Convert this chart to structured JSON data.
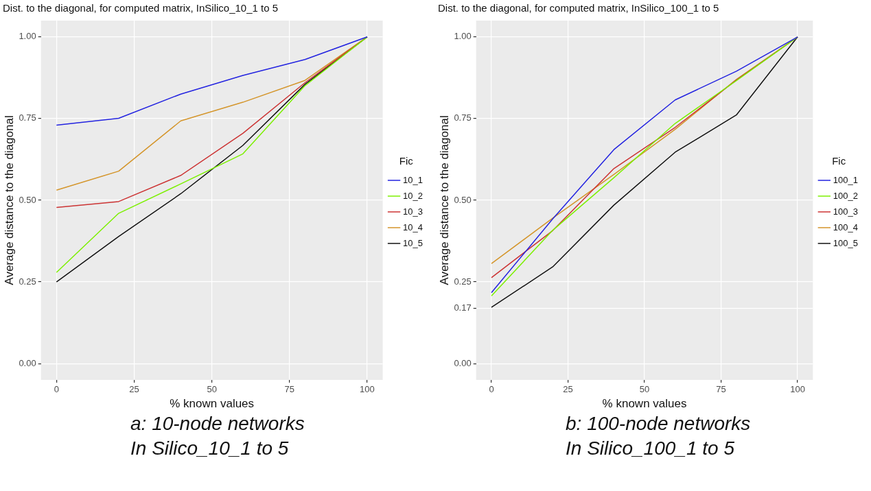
{
  "chart_data": [
    {
      "type": "line",
      "title": "Dist. to the diagonal, for computed matrix, InSilico_10_1 to 5",
      "xlabel": "% known values",
      "ylabel": "Average distance to the diagonal",
      "legend_title": "Fic",
      "legend": "right",
      "grid": true,
      "marker": "none",
      "x": [
        0,
        20,
        40,
        60,
        80,
        100
      ],
      "xlim": [
        -5,
        105
      ],
      "xticks": [
        0,
        25,
        50,
        75,
        100
      ],
      "ylim": [
        -0.05,
        1.05
      ],
      "yticks": [
        {
          "value": 0,
          "label": "0.00"
        },
        0.25,
        {
          "value": 0.5,
          "label": "0.50"
        },
        0.75,
        {
          "value": 1,
          "label": "1.00"
        }
      ],
      "series": [
        {
          "name": "10_1",
          "color": "#2222e0",
          "values": [
            0.73,
            0.751,
            0.825,
            0.882,
            0.931,
            1
          ]
        },
        {
          "name": "10_2",
          "color": "#7cf000",
          "values": [
            0.279,
            0.46,
            0.55,
            0.642,
            0.851,
            1
          ]
        },
        {
          "name": "10_3",
          "color": "#cc3333",
          "values": [
            0.478,
            0.496,
            0.576,
            0.705,
            0.86,
            1
          ]
        },
        {
          "name": "10_4",
          "color": "#d4952a",
          "values": [
            0.531,
            0.589,
            0.743,
            0.8,
            0.867,
            1
          ]
        },
        {
          "name": "10_5",
          "color": "#111111",
          "values": [
            0.25,
            0.389,
            0.52,
            0.668,
            0.855,
            1
          ]
        }
      ],
      "annotations": [
        "a: 10-node networks",
        "In Silico_10_1 to 5"
      ]
    },
    {
      "type": "line",
      "title": "Dist. to the diagonal, for computed matrix, InSilico_100_1 to 5",
      "xlabel": "% known values",
      "ylabel": "Average distance to the diagonal",
      "legend_title": "Fic",
      "legend": "right",
      "grid": true,
      "marker": "none",
      "x": [
        0,
        20,
        40,
        60,
        80,
        100
      ],
      "xlim": [
        -5,
        105
      ],
      "xticks": [
        0,
        25,
        50,
        75,
        100
      ],
      "ylim": [
        -0.05,
        1.05
      ],
      "yticks": [
        {
          "value": 0,
          "label": "0.00"
        },
        0.17,
        0.25,
        {
          "value": 0.5,
          "label": "0.50"
        },
        0.75,
        {
          "value": 1,
          "label": "1.00"
        }
      ],
      "series": [
        {
          "name": "100_1",
          "color": "#2222e0",
          "values": [
            0.217,
            0.443,
            0.655,
            0.807,
            0.895,
            1
          ]
        },
        {
          "name": "100_2",
          "color": "#7cf000",
          "values": [
            0.207,
            0.408,
            0.569,
            0.735,
            0.866,
            1
          ]
        },
        {
          "name": "100_3",
          "color": "#cc3333",
          "values": [
            0.263,
            0.407,
            0.597,
            0.723,
            0.868,
            1
          ]
        },
        {
          "name": "100_4",
          "color": "#d4952a",
          "values": [
            0.306,
            0.445,
            0.579,
            0.717,
            0.87,
            1
          ]
        },
        {
          "name": "100_5",
          "color": "#111111",
          "values": [
            0.172,
            0.296,
            0.485,
            0.647,
            0.761,
            1
          ]
        }
      ],
      "annotations": [
        "b: 100-node networks",
        "In Silico_100_1 to 5"
      ]
    }
  ]
}
